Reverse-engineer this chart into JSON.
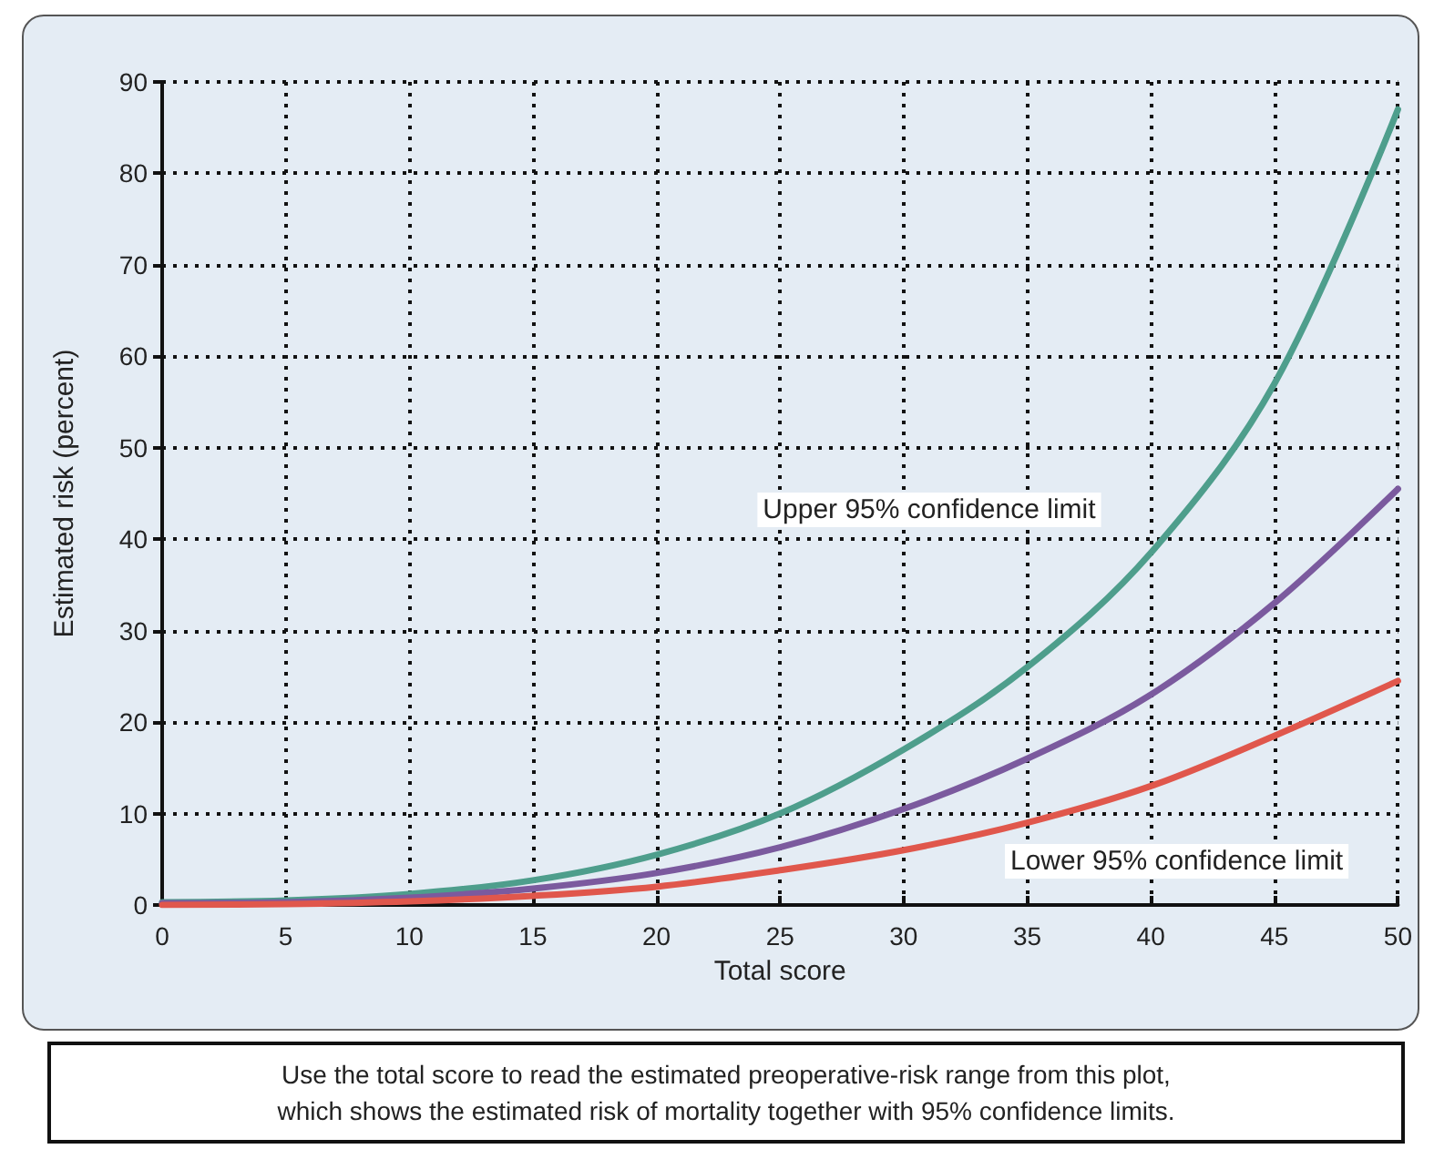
{
  "chart_data": {
    "type": "line",
    "xlabel": "Total score",
    "ylabel": "Estimated risk (percent)",
    "x": [
      0,
      5,
      10,
      15,
      20,
      25,
      30,
      35,
      40,
      45,
      50
    ],
    "series": [
      {
        "color": "#4e9e8c",
        "values": [
          0.3,
          0.5,
          1.2,
          2.7,
          5.5,
          10,
          17,
          26,
          38.5,
          57,
          87
        ]
      },
      {
        "color": "#7b5a9e",
        "values": [
          0.2,
          0.3,
          0.8,
          1.8,
          3.5,
          6.3,
          10.5,
          16,
          23,
          33,
          45.5
        ]
      },
      {
        "color": "#e0574c",
        "values": [
          0,
          0.1,
          0.4,
          1,
          2,
          3.8,
          6,
          9,
          13,
          18.5,
          24.5
        ]
      }
    ],
    "xlim": [
      0,
      50
    ],
    "xticks": [
      0,
      5,
      10,
      15,
      20,
      25,
      30,
      35,
      40,
      45,
      50
    ],
    "ylim": [
      0,
      90
    ],
    "yticks": [
      0,
      10,
      20,
      30,
      40,
      50,
      60,
      70,
      80,
      90
    ],
    "grid": true,
    "marker": "none",
    "line_style": "solid",
    "annotations": [
      "Upper 95% confidence limit",
      "Lower 95% confidence limit",
      "Use the total score to read the estimated preoperative-risk range from this plot,\nwhich shows the estimated risk of mortality together with 95% confidence limits."
    ]
  }
}
